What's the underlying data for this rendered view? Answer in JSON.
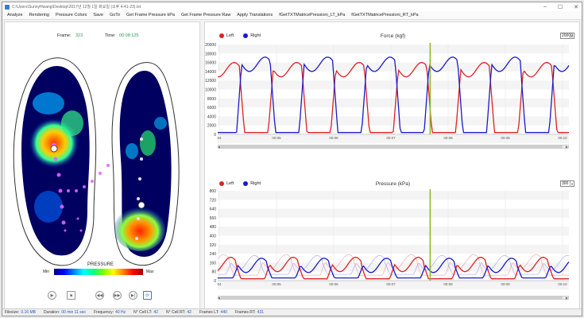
{
  "window": {
    "title": "C:\\Users\\SunnyHwang\\Desktop\\2017년 12월 1일 화요일 (오후 4-41-23).txt"
  },
  "menu": [
    "Analyze",
    "Rendering",
    "Pressure Colors",
    "Save",
    "GoTo",
    "Get Frame Pressure kPa",
    "Get Frame Pressure Raw",
    "Apply Translations",
    "fGetTXTMatricePressioni_LT_kPa",
    "fGetTXTMatricePressioni_RT_kPa"
  ],
  "left": {
    "frame_label": "Frame:",
    "frame_value": "323",
    "time_label": "Time:",
    "time_value": "00:08:125",
    "pressure_label": "PRESSURE",
    "min_label": "Min",
    "max_label": "Max"
  },
  "force": {
    "title": "Force (kgf)",
    "legend_left": "Left",
    "legend_right": "Right",
    "spin_value": "20000",
    "yticks": [
      "20000",
      "18000",
      "16000",
      "14000",
      "12000",
      "10000",
      "8000",
      "6000",
      "4000",
      "2000",
      "0"
    ],
    "xticks": [
      "04",
      "00:05",
      "00:06",
      "00:07",
      "00:08",
      "00:09",
      "00:10"
    ]
  },
  "pressure": {
    "title": "Pressure (kPa)",
    "legend_left": "Left",
    "legend_right": "Right",
    "spin_value": "300",
    "yticks": [
      "800",
      "720",
      "640",
      "560",
      "480",
      "400",
      "320",
      "240",
      "160",
      "80",
      "0"
    ],
    "xticks": [
      "04",
      "00:05",
      "00:06",
      "00:07",
      "00:08",
      "00:09",
      "00:10"
    ]
  },
  "status": {
    "filesize_label": "Filesize:",
    "filesize": "0.16 MB",
    "duration_label": "Duration:",
    "duration": "00 min 11 sec",
    "frequency_label": "Frequency:",
    "frequency": "40 Hz",
    "celllt_label": "N° Cell LT:",
    "celllt": "42",
    "cellrt_label": "N° Cell RT:",
    "cellrt": "42",
    "frameslt_label": "Frames LT:",
    "frameslt": "440",
    "framesrt_label": "Frames RT:",
    "framesrt": "431"
  },
  "colors": {
    "left": "#dd2222",
    "right": "#1a1acc",
    "cursor": "#8db82a"
  }
}
